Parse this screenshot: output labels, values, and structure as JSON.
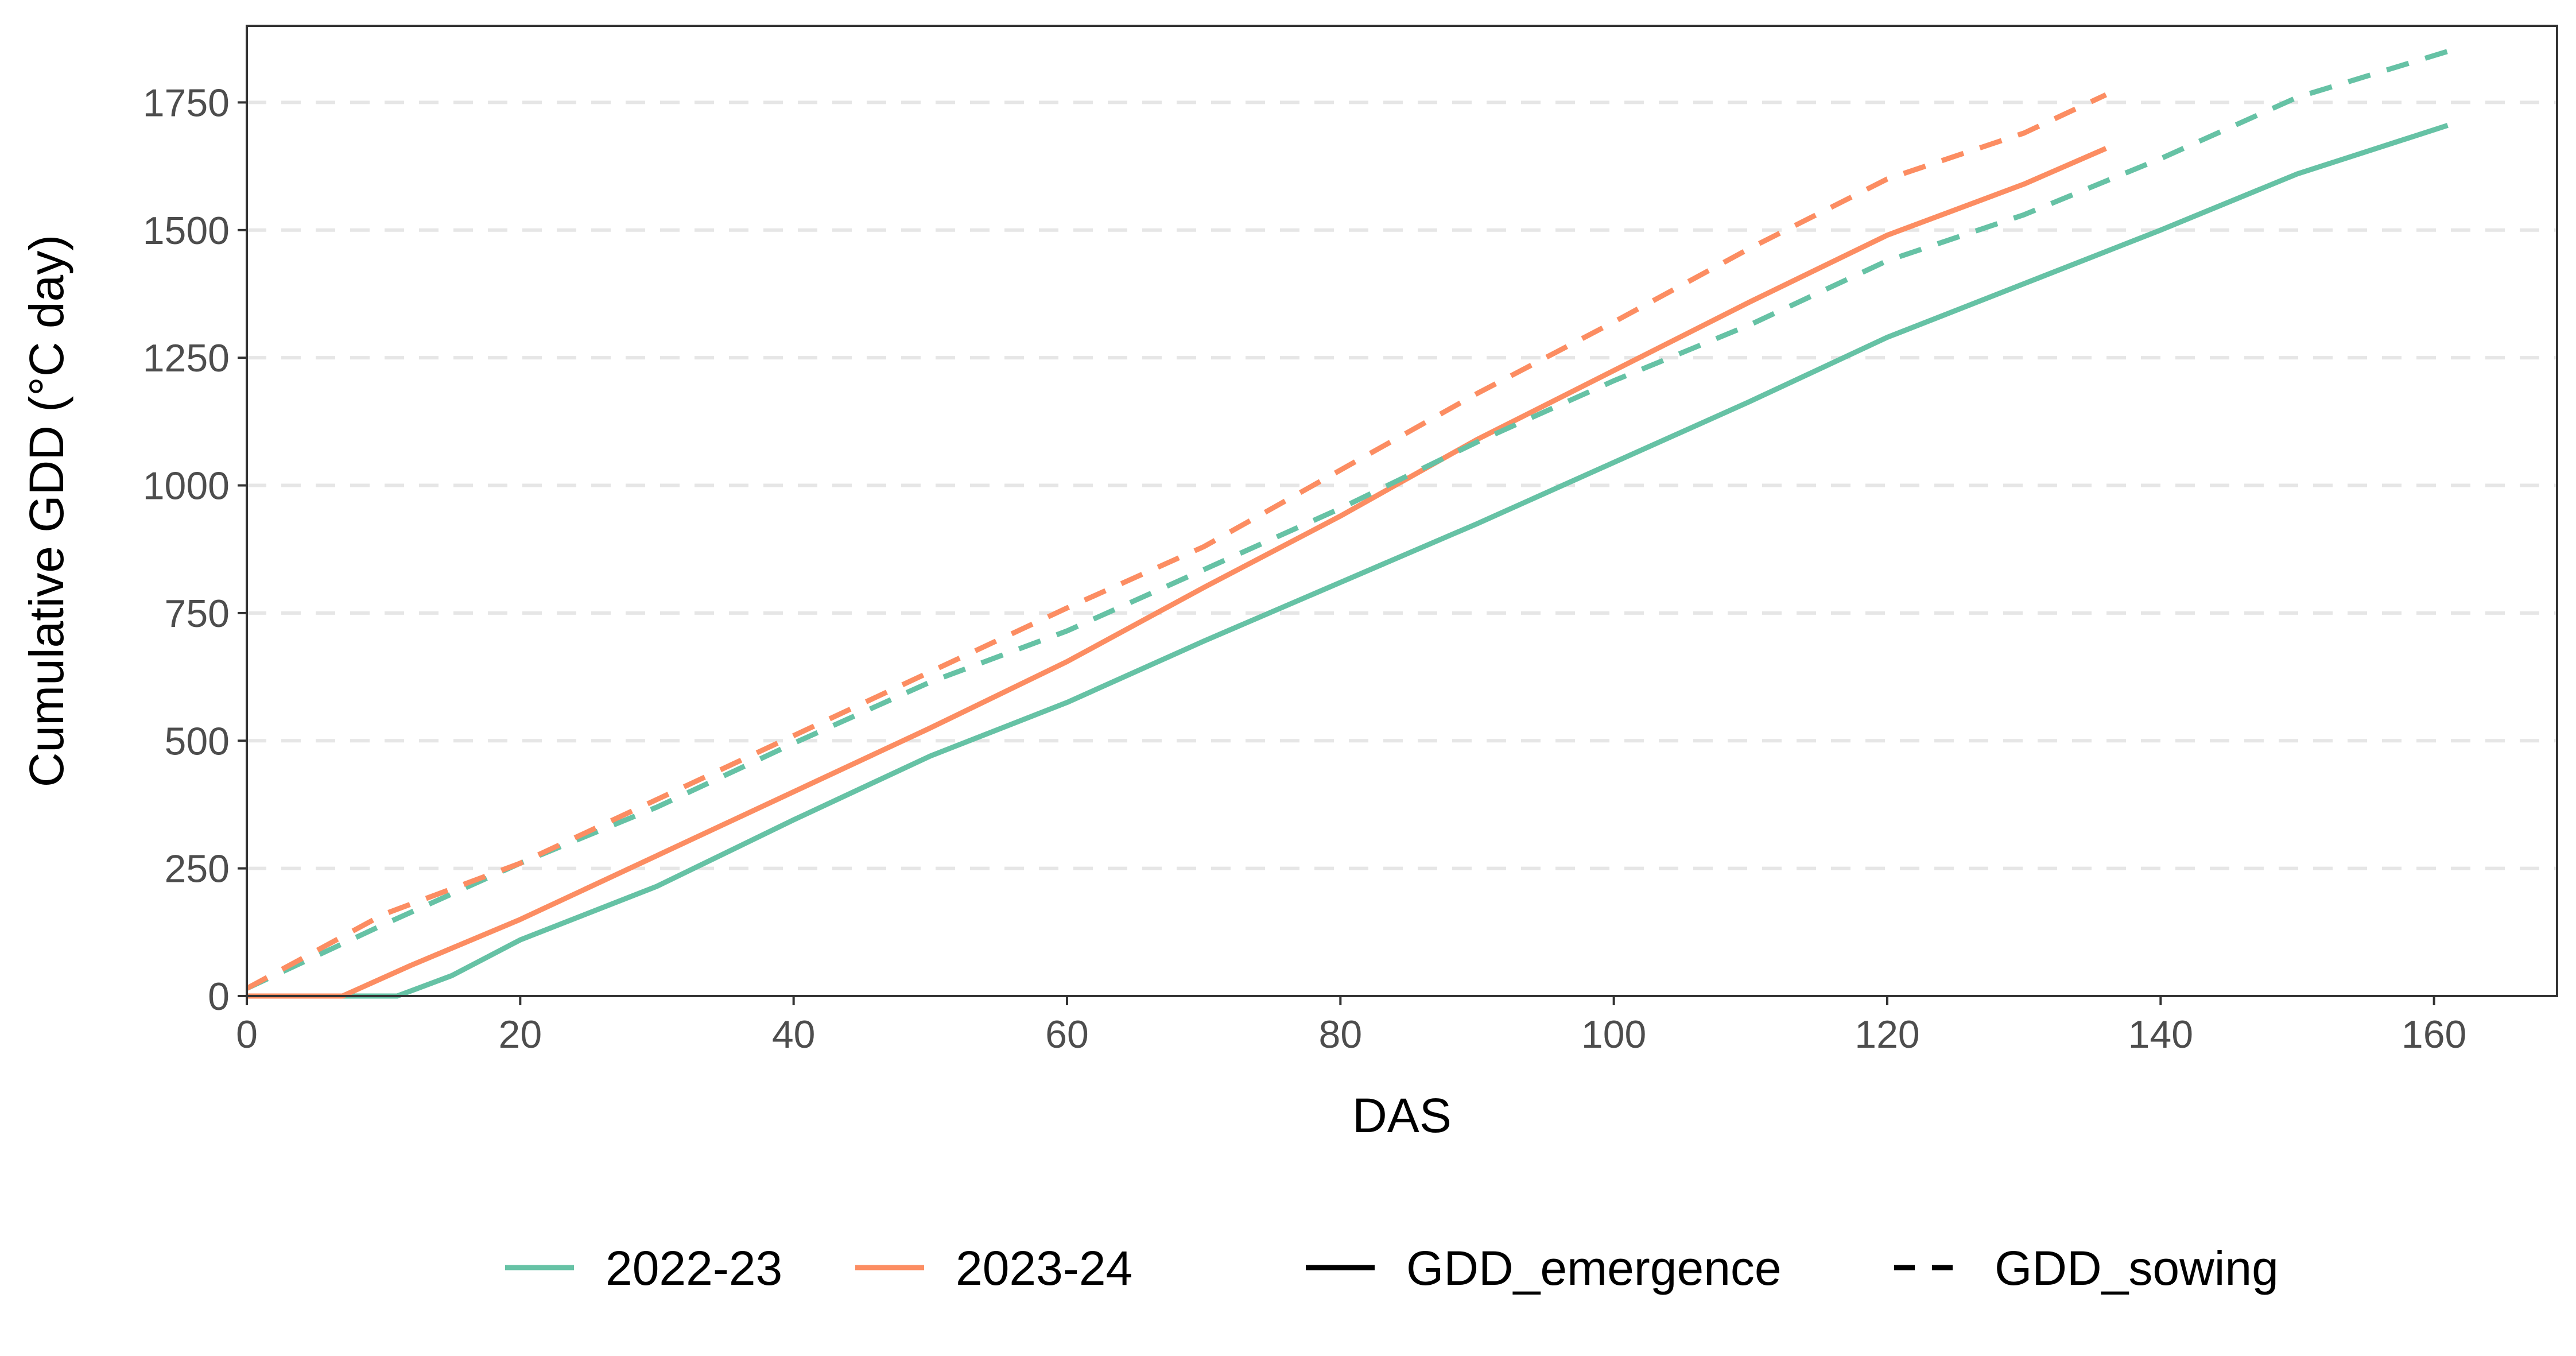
{
  "chart_data": {
    "type": "line",
    "xlabel": "DAS",
    "ylabel": "Cumulative GDD (°C day)",
    "xlim": [
      0,
      169
    ],
    "ylim": [
      0,
      1900
    ],
    "x_ticks": [
      0,
      20,
      40,
      60,
      80,
      100,
      120,
      140,
      160
    ],
    "y_ticks": [
      0,
      250,
      500,
      750,
      1000,
      1250,
      1500,
      1750
    ],
    "grid": {
      "horizontal_major": true,
      "vertical": false,
      "style": "dashed"
    },
    "legend": {
      "placement": "bottom",
      "color_entries": [
        {
          "label": "2022-23",
          "color": "#66c2a5"
        },
        {
          "label": "2023-24",
          "color": "#fc8d62"
        }
      ],
      "linetype_entries": [
        {
          "label": "GDD_emergence",
          "dash": "solid"
        },
        {
          "label": "GDD_sowing",
          "dash": "dashed"
        }
      ]
    },
    "series": [
      {
        "season": "2022-23",
        "type": "GDD_emergence",
        "color": "#66c2a5",
        "dash": "solid",
        "points": [
          [
            0,
            0
          ],
          [
            11,
            0
          ],
          [
            15,
            40
          ],
          [
            20,
            110
          ],
          [
            30,
            215
          ],
          [
            40,
            345
          ],
          [
            50,
            470
          ],
          [
            60,
            575
          ],
          [
            70,
            695
          ],
          [
            80,
            810
          ],
          [
            90,
            925
          ],
          [
            100,
            1045
          ],
          [
            110,
            1165
          ],
          [
            120,
            1290
          ],
          [
            130,
            1395
          ],
          [
            140,
            1500
          ],
          [
            150,
            1610
          ],
          [
            161,
            1705
          ]
        ]
      },
      {
        "season": "2023-24",
        "type": "GDD_emergence",
        "color": "#fc8d62",
        "dash": "solid",
        "points": [
          [
            0,
            0
          ],
          [
            7,
            0
          ],
          [
            12,
            60
          ],
          [
            20,
            150
          ],
          [
            30,
            275
          ],
          [
            40,
            400
          ],
          [
            50,
            525
          ],
          [
            60,
            655
          ],
          [
            70,
            800
          ],
          [
            80,
            940
          ],
          [
            90,
            1090
          ],
          [
            100,
            1225
          ],
          [
            110,
            1360
          ],
          [
            120,
            1490
          ],
          [
            130,
            1590
          ],
          [
            136,
            1660
          ]
        ]
      },
      {
        "season": "2022-23",
        "type": "GDD_sowing",
        "color": "#66c2a5",
        "dash": "dashed",
        "points": [
          [
            0,
            15
          ],
          [
            10,
            140
          ],
          [
            20,
            260
          ],
          [
            30,
            370
          ],
          [
            40,
            495
          ],
          [
            50,
            615
          ],
          [
            60,
            715
          ],
          [
            70,
            835
          ],
          [
            80,
            955
          ],
          [
            90,
            1085
          ],
          [
            100,
            1205
          ],
          [
            110,
            1315
          ],
          [
            120,
            1440
          ],
          [
            130,
            1530
          ],
          [
            140,
            1640
          ],
          [
            150,
            1760
          ],
          [
            161,
            1850
          ]
        ]
      },
      {
        "season": "2023-24",
        "type": "GDD_sowing",
        "color": "#fc8d62",
        "dash": "dashed",
        "points": [
          [
            0,
            15
          ],
          [
            10,
            160
          ],
          [
            20,
            260
          ],
          [
            30,
            385
          ],
          [
            40,
            510
          ],
          [
            50,
            635
          ],
          [
            60,
            760
          ],
          [
            70,
            880
          ],
          [
            80,
            1030
          ],
          [
            90,
            1180
          ],
          [
            100,
            1320
          ],
          [
            110,
            1465
          ],
          [
            120,
            1600
          ],
          [
            130,
            1690
          ],
          [
            136,
            1765
          ]
        ]
      }
    ]
  }
}
